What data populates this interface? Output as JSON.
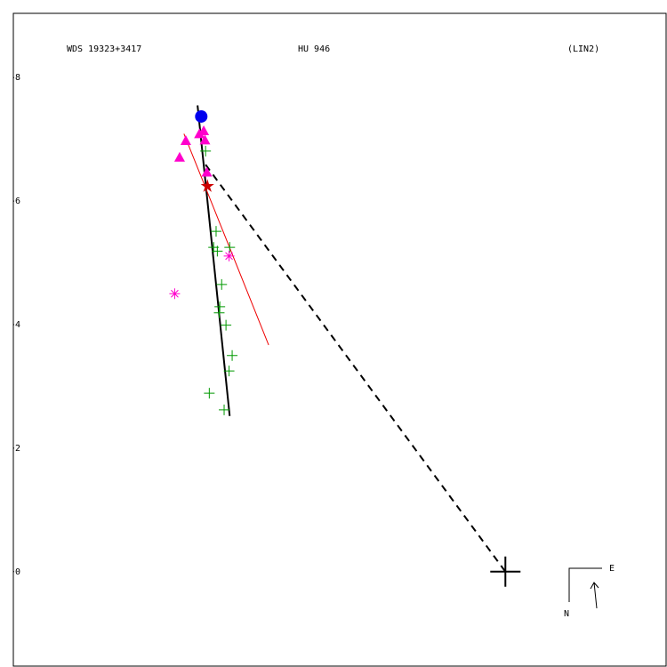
{
  "chart_data": {
    "type": "orbit",
    "title": "WDS 19323+3417",
    "subtitle": "HU  946",
    "reference": "(LIN2)",
    "east_label": "E",
    "north_label": "N",
    "xlim": [
      -7.96,
      2.6
    ],
    "ylim": [
      -1.53,
      9.04
    ],
    "yticks": [
      0,
      2,
      4,
      6,
      8
    ],
    "series": [
      {
        "marker": "plus",
        "color": "#009900",
        "x": [
          -4.85,
          -4.68,
          -4.72,
          -4.66,
          -4.46,
          -4.59,
          -4.62,
          -4.63,
          -4.52,
          -4.42,
          -4.47,
          -4.79,
          -4.55
        ],
        "y": [
          6.81,
          5.51,
          5.25,
          5.19,
          5.25,
          4.65,
          4.29,
          4.19,
          3.99,
          3.5,
          3.25,
          2.89,
          2.62
        ]
      },
      {
        "marker": "triangle",
        "color": "#ff00cc",
        "x": [
          -5.27,
          -5.17,
          -4.95,
          -4.86,
          -4.88,
          -4.83
        ],
        "y": [
          6.71,
          6.98,
          7.09,
          6.99,
          7.14,
          6.47
        ]
      },
      {
        "marker": "circle",
        "color": "#0000ee",
        "x": [
          -4.92
        ],
        "y": [
          7.37
        ]
      },
      {
        "marker": "star",
        "color": "#cc0000",
        "x": [
          -4.82
        ],
        "y": [
          6.24
        ]
      },
      {
        "marker": "asterisk",
        "color": "#ff00cc",
        "x": [
          -5.35,
          -4.47
        ],
        "y": [
          4.5,
          5.11
        ]
      },
      {
        "marker": "primary",
        "color": "#000000",
        "x": [
          0
        ],
        "y": [
          0
        ]
      }
    ],
    "lines": [
      {
        "color": "#000000",
        "style": "solid",
        "width": 2,
        "x": [
          -4.98,
          -4.46
        ],
        "y": [
          7.55,
          2.52
        ]
      },
      {
        "color": "#ee0000",
        "style": "solid",
        "width": 1,
        "x": [
          -5.2,
          -3.83
        ],
        "y": [
          7.09,
          3.67
        ]
      },
      {
        "color": "#000000",
        "style": "dashed",
        "width": 2,
        "x": [
          -4.85,
          0
        ],
        "y": [
          6.59,
          0
        ]
      }
    ]
  }
}
